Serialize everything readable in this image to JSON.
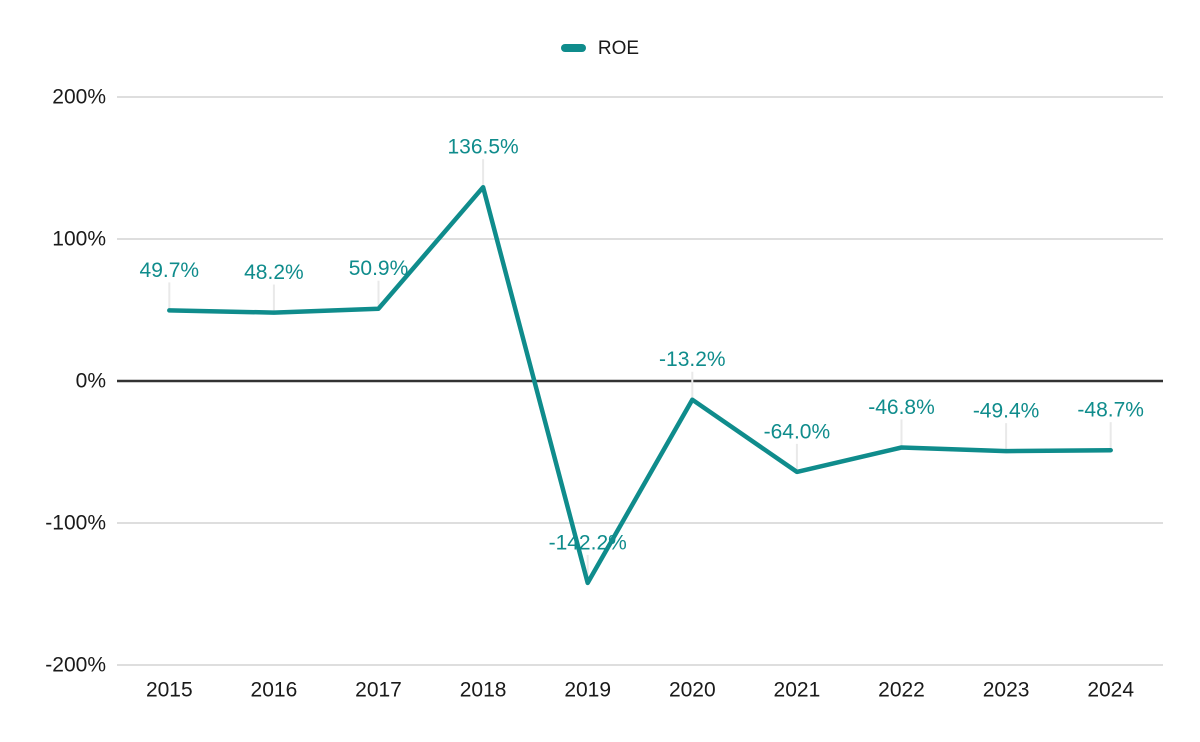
{
  "legend": {
    "position": "top-center",
    "items": [
      {
        "label": "ROE"
      }
    ]
  },
  "chart_data": {
    "type": "line",
    "title": "",
    "xlabel": "",
    "ylabel": "",
    "x": [
      "2015",
      "2016",
      "2017",
      "2018",
      "2019",
      "2020",
      "2021",
      "2022",
      "2023",
      "2024"
    ],
    "series": [
      {
        "name": "ROE",
        "values": [
          49.7,
          48.2,
          50.9,
          136.5,
          -142.2,
          -13.2,
          -64.0,
          -46.8,
          -49.4,
          -48.7
        ],
        "labels": [
          "49.7%",
          "48.2%",
          "50.9%",
          "136.5%",
          "-142.2%",
          "-13.2%",
          "-64.0%",
          "-46.8%",
          "-49.4%",
          "-48.7%"
        ]
      }
    ],
    "ylim": [
      -200,
      200
    ],
    "yticks": [
      {
        "value": 200,
        "label": "200%"
      },
      {
        "value": 100,
        "label": "100%"
      },
      {
        "value": 0,
        "label": "0%"
      },
      {
        "value": -100,
        "label": "-100%"
      },
      {
        "value": -200,
        "label": "-200%"
      }
    ],
    "grid": true,
    "legend_position": "top-center",
    "colors": {
      "series": "#0f8c8c",
      "data_label": "#0f8c8c",
      "gridline": "#d9d9d9",
      "zero_line": "#333333",
      "leader_line": "#e9e9e9",
      "axis_text": "#1a1a1a"
    }
  }
}
